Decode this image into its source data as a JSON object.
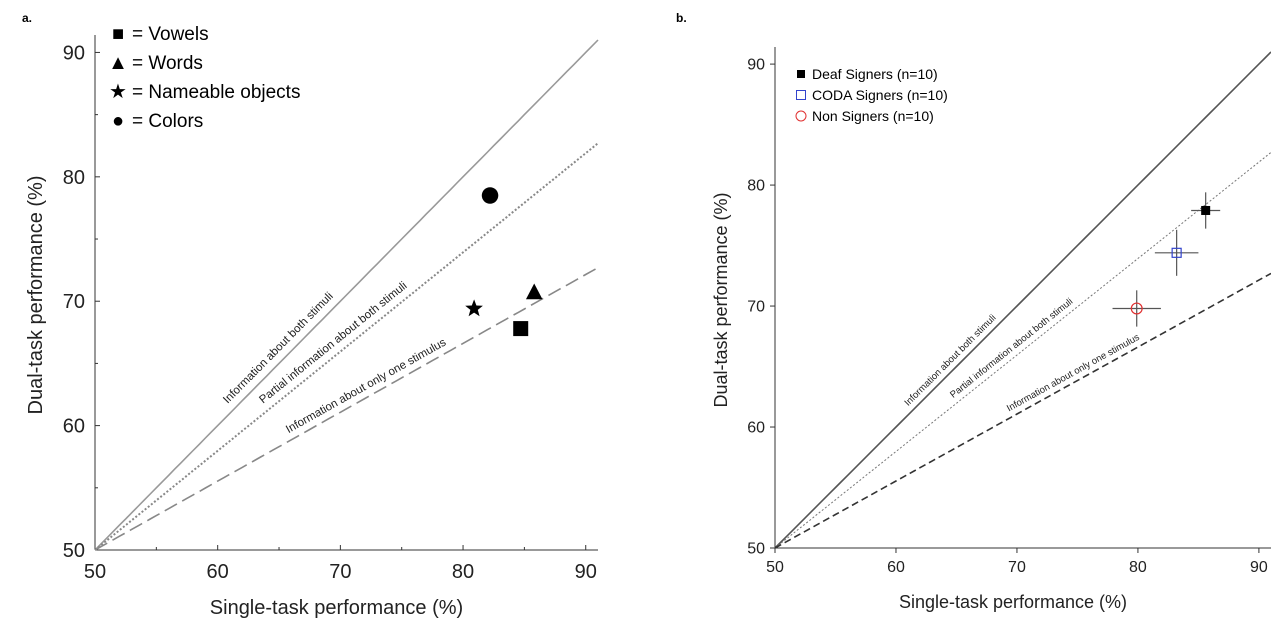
{
  "chart_data": [
    {
      "panel": "a.",
      "type": "scatter",
      "xlabel": "Single-task performance (%)",
      "ylabel": "Dual-task performance (%)",
      "xlim": [
        50,
        91
      ],
      "ylim": [
        50,
        91
      ],
      "xticks": [
        50,
        60,
        70,
        80,
        90
      ],
      "yticks": [
        50,
        60,
        70,
        80,
        90
      ],
      "legend": [
        {
          "symbol": "■",
          "text": "= Vowels"
        },
        {
          "symbol": "▲",
          "text": "= Words"
        },
        {
          "symbol": "★",
          "text": "= Nameable objects"
        },
        {
          "symbol": "●",
          "text": "= Colors"
        }
      ],
      "reference_lines": [
        {
          "label": "Information about both stimuli",
          "style": "solid"
        },
        {
          "label": "Partial information about both stimuli",
          "style": "dotted"
        },
        {
          "label": "Information about only one stimulus",
          "style": "dashed"
        }
      ],
      "series": [
        {
          "name": "Vowels",
          "marker": "square",
          "points": [
            [
              84.7,
              67.8
            ]
          ]
        },
        {
          "name": "Words",
          "marker": "triangle",
          "points": [
            [
              85.8,
              70.7
            ]
          ]
        },
        {
          "name": "Nameable objects",
          "marker": "star",
          "points": [
            [
              80.9,
              69.4
            ]
          ]
        },
        {
          "name": "Colors",
          "marker": "circle",
          "points": [
            [
              82.2,
              78.5
            ]
          ]
        }
      ]
    },
    {
      "panel": "b.",
      "type": "scatter",
      "xlabel": "Single-task performance (%)",
      "ylabel": "Dual-task performance (%)",
      "xlim": [
        50,
        91
      ],
      "ylim": [
        50,
        91
      ],
      "xticks": [
        50,
        60,
        70,
        80,
        90
      ],
      "yticks": [
        50,
        60,
        70,
        80,
        90
      ],
      "legend": [
        {
          "text": "Deaf Signers (n=10)",
          "color": "#000000"
        },
        {
          "text": "CODA Signers (n=10)",
          "color": "#3344cc"
        },
        {
          "text": "Non Signers (n=10)",
          "color": "#e03030"
        }
      ],
      "reference_lines": [
        {
          "label": "Information about both stimuli",
          "style": "solid"
        },
        {
          "label": "Partial information about both stimuli",
          "style": "dotted"
        },
        {
          "label": "Information about only one stimulus",
          "style": "dashed"
        }
      ],
      "series": [
        {
          "name": "Deaf Signers (n=10)",
          "marker": "filled-square",
          "color": "#000000",
          "points": [
            [
              85.6,
              77.9
            ]
          ],
          "xerr": 1.2,
          "yerr": 1.5
        },
        {
          "name": "CODA Signers (n=10)",
          "marker": "open-square",
          "color": "#3344cc",
          "points": [
            [
              83.2,
              74.4
            ]
          ],
          "xerr": 1.8,
          "yerr": 1.9
        },
        {
          "name": "Non Signers (n=10)",
          "marker": "open-circle",
          "color": "#e03030",
          "points": [
            [
              79.9,
              69.8
            ]
          ],
          "xerr": 2.0,
          "yerr": 1.5
        }
      ]
    }
  ]
}
